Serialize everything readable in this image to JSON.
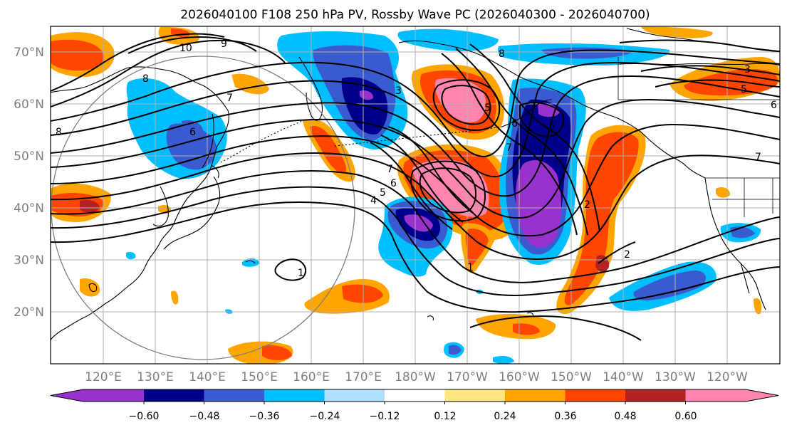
{
  "title": "2026040100 F108 250 hPa PV, Rossby Wave PC (2026040300 - 2026040700)",
  "map": {
    "lat_labels": [
      "70°N",
      "60°N",
      "50°N",
      "40°N",
      "30°N",
      "20°N"
    ],
    "lon_labels": [
      "120°E",
      "130°E",
      "140°E",
      "150°E",
      "160°E",
      "170°E",
      "180°W",
      "170°W",
      "160°W",
      "150°W",
      "140°W",
      "130°W",
      "120°W"
    ],
    "contour_labels": [
      "10",
      "9",
      "8",
      "8",
      "7",
      "6",
      "7",
      "6",
      "5",
      "4",
      "3",
      "2",
      "1",
      "1",
      "2",
      "3",
      "5",
      "7",
      "5",
      "6",
      "7",
      "8",
      "6",
      "7"
    ],
    "colors": {
      "land": "#000000",
      "grid": "#b0b0b0",
      "contour": "#000000",
      "circle": "#808080"
    }
  },
  "colorbar": {
    "tick_labels": [
      "−0.60",
      "−0.48",
      "−0.36",
      "−0.24",
      "−0.12",
      "0.12",
      "0.24",
      "0.36",
      "0.48",
      "0.60"
    ],
    "colors": [
      "#9932cc",
      "#00008b",
      "#3a5bcf",
      "#00bfff",
      "#b0e0ff",
      "#ffffff",
      "#ffe680",
      "#ffa500",
      "#ff4500",
      "#b22222",
      "#ff85b0"
    ]
  }
}
